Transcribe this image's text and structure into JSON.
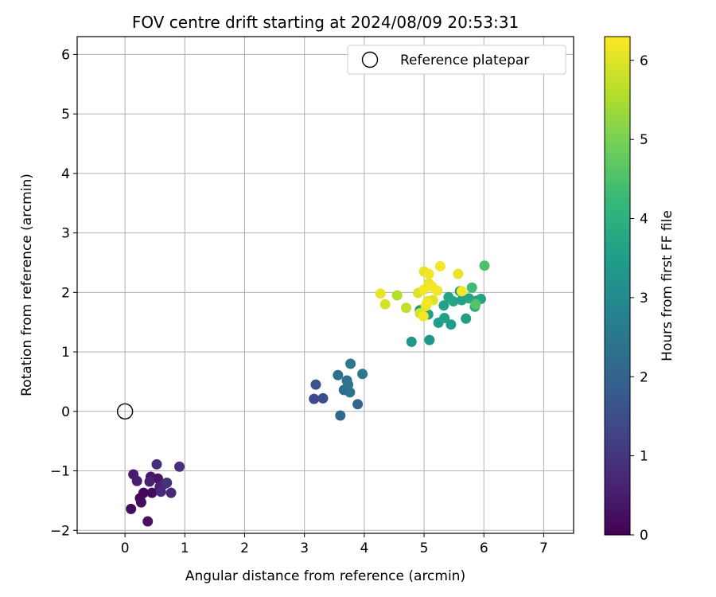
{
  "chart_data": {
    "type": "scatter",
    "title": "FOV centre drift starting at 2024/08/09 20:53:31",
    "xlabel": "Angular distance from reference (arcmin)",
    "ylabel": "Rotation from reference (arcmin)",
    "xlim": [
      -0.8,
      7.5
    ],
    "ylim": [
      -2.05,
      6.3
    ],
    "xticks": [
      0,
      1,
      2,
      3,
      4,
      5,
      6,
      7
    ],
    "yticks": [
      -2,
      -1,
      0,
      1,
      2,
      3,
      4,
      5,
      6
    ],
    "xtick_labels": [
      "0",
      "1",
      "2",
      "3",
      "4",
      "5",
      "6",
      "7"
    ],
    "ytick_labels": [
      "−2",
      "−1",
      "0",
      "1",
      "2",
      "3",
      "4",
      "5",
      "6"
    ],
    "grid": true,
    "legend": {
      "position": "upper right",
      "entries": [
        "Reference platepar"
      ]
    },
    "reference_point": {
      "name": "Reference platepar",
      "x": 0,
      "y": 0,
      "marker": "open-circle"
    },
    "colorbar": {
      "label": "Hours from first FF file",
      "min": 0,
      "max": 6.3,
      "ticks": [
        0,
        1,
        2,
        3,
        4,
        5,
        6
      ],
      "tick_labels": [
        "0",
        "1",
        "2",
        "3",
        "4",
        "5",
        "6"
      ],
      "colormap": "viridis",
      "stops": [
        "#440154",
        "#482878",
        "#3e4a89",
        "#31688e",
        "#26828e",
        "#1f9e89",
        "#35b779",
        "#6ece58",
        "#b5de2b",
        "#fde725"
      ]
    },
    "points": [
      {
        "x": 0.31,
        "y": -1.37,
        "h": 0.05
      },
      {
        "x": 0.25,
        "y": -1.46,
        "h": 0.1
      },
      {
        "x": 0.45,
        "y": -1.37,
        "h": 0.15
      },
      {
        "x": 0.1,
        "y": -1.64,
        "h": 0.2
      },
      {
        "x": 0.27,
        "y": -1.53,
        "h": 0.25
      },
      {
        "x": 0.38,
        "y": -1.85,
        "h": 0.3
      },
      {
        "x": 0.55,
        "y": -1.13,
        "h": 0.35
      },
      {
        "x": 0.43,
        "y": -1.1,
        "h": 0.4
      },
      {
        "x": 0.14,
        "y": -1.06,
        "h": 0.45
      },
      {
        "x": 0.2,
        "y": -1.17,
        "h": 0.5
      },
      {
        "x": 0.41,
        "y": -1.18,
        "h": 0.55
      },
      {
        "x": 0.58,
        "y": -1.27,
        "h": 0.6
      },
      {
        "x": 0.66,
        "y": -1.22,
        "h": 0.65
      },
      {
        "x": 0.77,
        "y": -1.37,
        "h": 0.7
      },
      {
        "x": 0.6,
        "y": -1.35,
        "h": 0.75
      },
      {
        "x": 0.53,
        "y": -0.89,
        "h": 0.8
      },
      {
        "x": 0.91,
        "y": -0.93,
        "h": 0.85
      },
      {
        "x": 0.7,
        "y": -1.2,
        "h": 0.9
      },
      {
        "x": 3.16,
        "y": 0.21,
        "h": 1.4
      },
      {
        "x": 3.31,
        "y": 0.22,
        "h": 1.5
      },
      {
        "x": 3.19,
        "y": 0.45,
        "h": 1.6
      },
      {
        "x": 3.89,
        "y": 0.12,
        "h": 2.0
      },
      {
        "x": 3.6,
        "y": -0.07,
        "h": 2.1
      },
      {
        "x": 3.66,
        "y": 0.36,
        "h": 2.2
      },
      {
        "x": 3.56,
        "y": 0.61,
        "h": 2.3
      },
      {
        "x": 3.71,
        "y": 0.52,
        "h": 2.35
      },
      {
        "x": 3.76,
        "y": 0.32,
        "h": 2.4
      },
      {
        "x": 3.73,
        "y": 0.45,
        "h": 2.45
      },
      {
        "x": 3.77,
        "y": 0.8,
        "h": 2.5
      },
      {
        "x": 3.97,
        "y": 0.63,
        "h": 2.55
      },
      {
        "x": 4.79,
        "y": 1.17,
        "h": 3.3
      },
      {
        "x": 5.09,
        "y": 1.2,
        "h": 3.3
      },
      {
        "x": 4.93,
        "y": 1.7,
        "h": 3.4
      },
      {
        "x": 5.24,
        "y": 1.49,
        "h": 3.5
      },
      {
        "x": 5.45,
        "y": 1.46,
        "h": 3.5
      },
      {
        "x": 5.34,
        "y": 1.57,
        "h": 3.5
      },
      {
        "x": 5.07,
        "y": 1.63,
        "h": 3.6
      },
      {
        "x": 5.33,
        "y": 1.78,
        "h": 3.6
      },
      {
        "x": 5.41,
        "y": 1.92,
        "h": 3.6
      },
      {
        "x": 5.49,
        "y": 1.85,
        "h": 3.7
      },
      {
        "x": 5.6,
        "y": 2.02,
        "h": 3.5
      },
      {
        "x": 5.63,
        "y": 1.87,
        "h": 3.6
      },
      {
        "x": 5.7,
        "y": 1.56,
        "h": 3.5
      },
      {
        "x": 5.75,
        "y": 1.9,
        "h": 3.7
      },
      {
        "x": 5.85,
        "y": 1.76,
        "h": 3.8
      },
      {
        "x": 5.95,
        "y": 1.89,
        "h": 3.6
      },
      {
        "x": 5.88,
        "y": 1.86,
        "h": 3.7
      },
      {
        "x": 5.8,
        "y": 2.08,
        "h": 4.3
      },
      {
        "x": 6.01,
        "y": 2.45,
        "h": 4.5
      },
      {
        "x": 5.86,
        "y": 1.8,
        "h": 4.6
      },
      {
        "x": 4.55,
        "y": 1.95,
        "h": 5.6
      },
      {
        "x": 4.7,
        "y": 1.74,
        "h": 5.7
      },
      {
        "x": 4.35,
        "y": 1.8,
        "h": 5.9
      },
      {
        "x": 4.27,
        "y": 1.98,
        "h": 6.1
      },
      {
        "x": 4.9,
        "y": 1.99,
        "h": 6.0
      },
      {
        "x": 4.93,
        "y": 1.65,
        "h": 5.9
      },
      {
        "x": 4.99,
        "y": 1.6,
        "h": 6.2
      },
      {
        "x": 5.03,
        "y": 1.77,
        "h": 6.1
      },
      {
        "x": 5.06,
        "y": 1.85,
        "h": 6.0
      },
      {
        "x": 5.0,
        "y": 2.05,
        "h": 6.2
      },
      {
        "x": 5.08,
        "y": 2.15,
        "h": 6.1
      },
      {
        "x": 5.13,
        "y": 2.1,
        "h": 6.2
      },
      {
        "x": 5.15,
        "y": 1.87,
        "h": 6.0
      },
      {
        "x": 5.22,
        "y": 2.03,
        "h": 6.2
      },
      {
        "x": 5.0,
        "y": 2.35,
        "h": 6.1
      },
      {
        "x": 5.08,
        "y": 2.31,
        "h": 6.2
      },
      {
        "x": 5.27,
        "y": 2.44,
        "h": 6.2
      },
      {
        "x": 5.57,
        "y": 2.31,
        "h": 6.1
      },
      {
        "x": 5.63,
        "y": 2.02,
        "h": 6.2
      },
      {
        "x": 5.05,
        "y": 1.83,
        "h": 6.2
      }
    ]
  }
}
